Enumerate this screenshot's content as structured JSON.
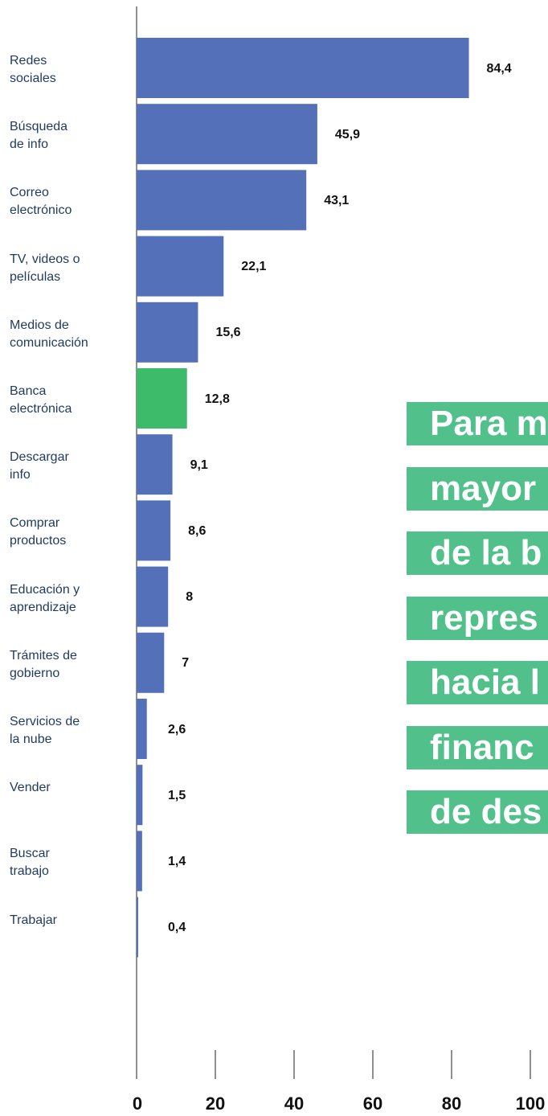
{
  "chart_data": {
    "type": "hbar",
    "categories": [
      "Redes\nsociales",
      "Búsqueda\nde info",
      "Correo\nelectrónico",
      "TV, videos o\npelículas",
      "Medios de\ncomunicación",
      "Banca\nelectrónica",
      "Descargar\ninfo",
      "Comprar\nproductos",
      "Educación y\naprendizaje",
      "Trámites de\ngobierno",
      "Servicios de\nla nube",
      "Vender",
      "Buscar\ntrabajo",
      "Trabajar"
    ],
    "values": [
      84.4,
      45.9,
      43.1,
      22.1,
      15.6,
      12.8,
      9.1,
      8.6,
      8,
      7,
      2.6,
      1.5,
      1.4,
      0.4
    ],
    "value_labels": [
      "84,4",
      "45,9",
      "43,1",
      "22,1",
      "15,6",
      "12,8",
      "9,1",
      "8,6",
      "8",
      "7",
      "2,6",
      "1,5",
      "1,4",
      "0,4"
    ],
    "colors": [
      "#5470b8",
      "#5470b8",
      "#5470b8",
      "#5470b8",
      "#5470b8",
      "#3dba6a",
      "#5470b8",
      "#5470b8",
      "#5470b8",
      "#5470b8",
      "#5470b8",
      "#5470b8",
      "#5470b8",
      "#5470b8"
    ],
    "xlim": [
      0,
      100
    ],
    "xticks": [
      0,
      20,
      40,
      60,
      80,
      100
    ],
    "annotation_lines": [
      "Para m",
      "mayor",
      "de la b",
      "repres",
      "hacia l",
      "financ",
      "de des"
    ]
  }
}
